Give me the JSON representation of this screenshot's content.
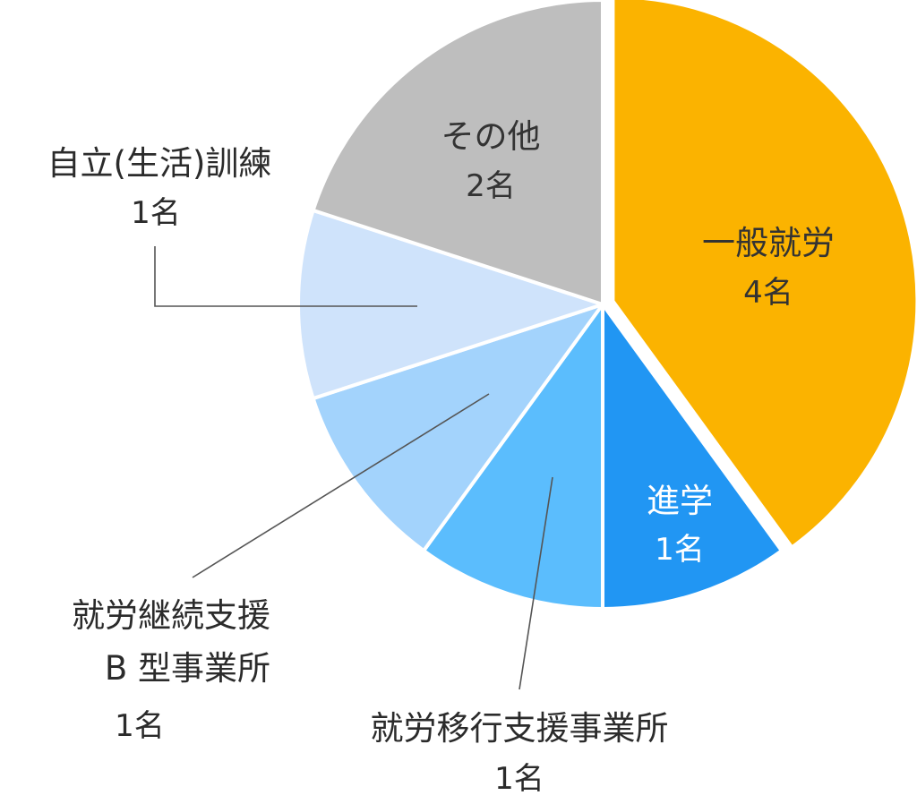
{
  "chart_data": {
    "type": "pie",
    "start": "top",
    "direction": "clockwise",
    "slices": [
      {
        "label": "一般就労",
        "value": 4,
        "value_label": "4名",
        "color": "#FBB300"
      },
      {
        "label": "進学",
        "value": 1,
        "value_label": "1名",
        "color": "#2196F3"
      },
      {
        "label": "就労移行支援事業所",
        "value": 1,
        "value_label": "1名",
        "color": "#5BBDFD"
      },
      {
        "label": "就労継続支援 B 型事業所",
        "value": 1,
        "value_label": "1名",
        "color": "#A3D3FC"
      },
      {
        "label": "自立(生活)訓練",
        "value": 1,
        "value_label": "1名",
        "color": "#CFE3FB"
      },
      {
        "label": "その他",
        "value": 2,
        "value_label": "2名",
        "color": "#BEBEBE"
      }
    ],
    "label_lines": {
      "b_type": [
        "就労継続支援",
        "B 型事業所"
      ],
      "jiritsu": "自立(生活)訓練"
    }
  }
}
